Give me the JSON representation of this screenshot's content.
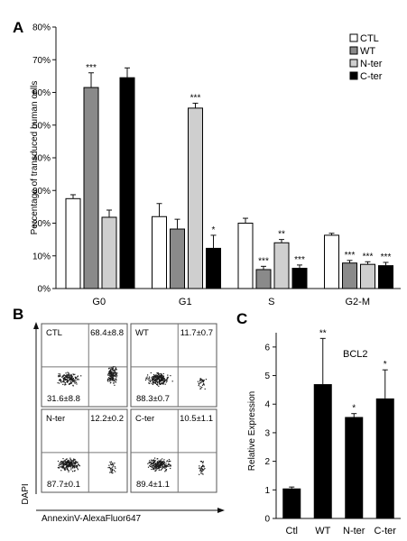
{
  "panels": {
    "a": "A",
    "b": "B",
    "c": "C"
  },
  "colors": {
    "CTL": "#ffffff",
    "WT": "#8a8a8a",
    "N-ter": "#cfcfcf",
    "C-ter": "#000000",
    "dot": "#1a1a1a"
  },
  "chart_data": [
    {
      "type": "bar",
      "panel": "A",
      "ylabel": "Percentage of transduced human cells",
      "ylim": [
        0,
        80
      ],
      "yticks": [
        "0%",
        "10%",
        "20%",
        "30%",
        "40%",
        "50%",
        "60%",
        "70%",
        "80%"
      ],
      "categories": [
        "G0",
        "G1",
        "S",
        "G2-M"
      ],
      "legend_position": "top-right",
      "series": [
        {
          "name": "CTL",
          "values": [
            27.5,
            22,
            20,
            16.3
          ],
          "errors": [
            1.2,
            4,
            1.5,
            0.6
          ],
          "sig": [
            "",
            "",
            "",
            ""
          ]
        },
        {
          "name": "WT",
          "values": [
            61.5,
            18.2,
            5.8,
            7.8
          ],
          "errors": [
            4.5,
            3,
            1,
            0.8
          ],
          "sig": [
            "***",
            "",
            "***",
            "***"
          ]
        },
        {
          "name": "N-ter",
          "values": [
            21.8,
            55.2,
            14,
            7.4
          ],
          "errors": [
            2.2,
            1.5,
            1,
            0.8
          ],
          "sig": [
            "",
            "***",
            "**",
            "***"
          ]
        },
        {
          "name": "C-ter",
          "values": [
            64.5,
            12.3,
            6.2,
            7
          ],
          "errors": [
            3,
            4,
            1,
            1
          ],
          "sig": [
            "",
            "*",
            "***",
            "***"
          ]
        }
      ]
    },
    {
      "type": "scatter",
      "panel": "B",
      "xlabel": "AnnexinV-AlexaFluor647",
      "ylabel": "DAPI",
      "plots": [
        {
          "name": "CTL",
          "top_right": "68.4±8.8",
          "bottom_left": "31.6±8.8"
        },
        {
          "name": "WT",
          "top_right": "11.7±0.7",
          "bottom_left": "88.3±0.7"
        },
        {
          "name": "N-ter",
          "top_right": "12.2±0.2",
          "bottom_left": "87.7±0.1"
        },
        {
          "name": "C-ter",
          "top_right": "10.5±1.1",
          "bottom_left": "89.4±1.1"
        }
      ]
    },
    {
      "type": "bar",
      "panel": "C",
      "title": "BCL2",
      "ylabel": "Relative Expression",
      "ylim": [
        0,
        6.5
      ],
      "yticks": [
        "0",
        "1",
        "2",
        "3",
        "4",
        "5",
        "6"
      ],
      "categories": [
        "Ctl",
        "WT",
        "N-ter",
        "C-ter"
      ],
      "values": [
        1.05,
        4.7,
        3.55,
        4.2
      ],
      "errors": [
        0.05,
        1.6,
        0.12,
        1.0
      ],
      "sig": [
        "",
        "**",
        "*",
        "*"
      ]
    }
  ]
}
